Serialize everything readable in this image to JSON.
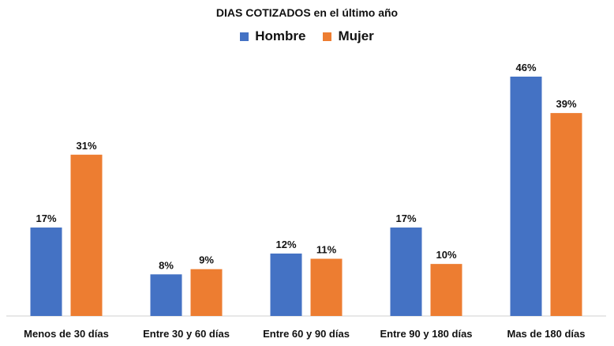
{
  "chart_data": {
    "type": "bar",
    "title": "DIAS COTIZADOS en el último año",
    "categories": [
      "Menos de 30 días",
      "Entre 30 y 60 días",
      "Entre 60 y 90 días",
      "Entre 90 y 180 días",
      "Mas de 180 días"
    ],
    "series": [
      {
        "name": "Hombre",
        "values": [
          17,
          8,
          12,
          17,
          46
        ],
        "labels": [
          "17%",
          "8%",
          "12%",
          "17%",
          "46%"
        ],
        "color": "#4472C4"
      },
      {
        "name": "Mujer",
        "values": [
          31,
          9,
          11,
          10,
          39
        ],
        "labels": [
          "31%",
          "9%",
          "11%",
          "10%",
          "39%"
        ],
        "color": "#ED7D31"
      }
    ],
    "xlabel": "",
    "ylabel": "",
    "ylim": [
      0,
      50
    ],
    "grid": false,
    "legend_position": "top"
  }
}
